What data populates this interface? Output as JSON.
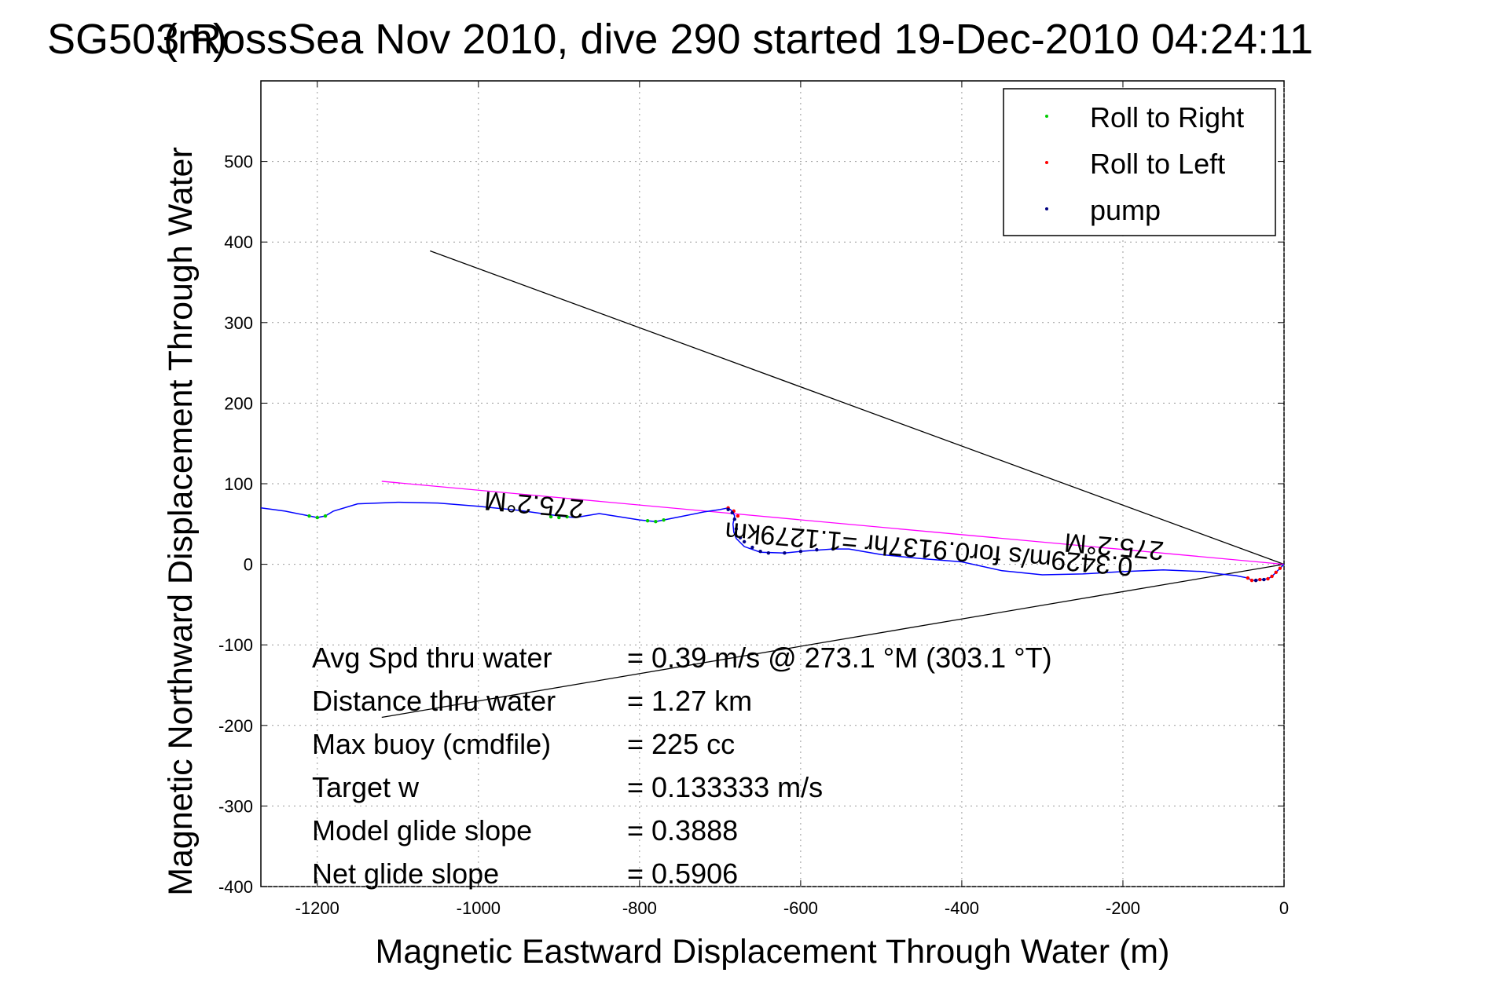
{
  "chart_data": {
    "type": "line",
    "title": "SG503 RossSea Nov 2010, dive 290 started 19-Dec-2010 04:24:11",
    "title_overprint": "(m)",
    "xlabel": "Magnetic Eastward Displacement Through Water (m)",
    "ylabel": "Magnetic Northward Displacement Through Water",
    "xlim": [
      -1270,
      0
    ],
    "ylim": [
      -400,
      600
    ],
    "xticks": [
      -1200,
      -1000,
      -800,
      -600,
      -400,
      -200,
      0
    ],
    "yticks": [
      -400,
      -300,
      -200,
      -100,
      0,
      100,
      200,
      300,
      400,
      500
    ],
    "grid": true,
    "legend_position": "top-right",
    "legend": [
      {
        "label": "Roll to Right",
        "color": "#00cc00"
      },
      {
        "label": "Roll to Left",
        "color": "#ff0000"
      },
      {
        "label": "pump",
        "color": "#000080"
      }
    ],
    "series": [
      {
        "color": "#0000ff",
        "x": [
          -1270,
          -1240,
          -1210,
          -1200,
          -1190,
          -1180,
          -1150,
          -1100,
          -1050,
          -1000,
          -950,
          -900,
          -880,
          -850,
          -800,
          -780,
          -760,
          -720,
          -700,
          -690,
          -685,
          -682,
          -684,
          -683,
          -680,
          -670,
          -650,
          -620,
          -600,
          -560,
          -540,
          -500,
          -450,
          -400,
          -350,
          -300,
          -250,
          -200,
          -150,
          -100,
          -80,
          -60,
          -45,
          -40,
          -35,
          -30,
          -20,
          -15,
          -10,
          -5,
          0
        ],
        "y": [
          70,
          66,
          60,
          58,
          60,
          66,
          75,
          77,
          76,
          72,
          67,
          60,
          58,
          63,
          55,
          53,
          57,
          65,
          68,
          70,
          66,
          60,
          50,
          40,
          32,
          22,
          15,
          14,
          16,
          19,
          19,
          12,
          7,
          3,
          -8,
          -13,
          -12,
          -9,
          -7,
          -9,
          -12,
          -14,
          -17,
          -20,
          -20,
          -19,
          -18,
          -15,
          -10,
          -5,
          0
        ]
      },
      {
        "color": "#00cc00",
        "x": [
          -1210,
          -1200,
          -1190,
          -910,
          -900,
          -890,
          -790,
          -780,
          -770
        ],
        "y": [
          60,
          58,
          60,
          59,
          58,
          59,
          54,
          53,
          55
        ]
      },
      {
        "color": "#ff0000",
        "x": [
          -690,
          -683,
          -678,
          -45,
          -40,
          -35,
          -30,
          -20,
          -15,
          -10,
          -5
        ],
        "y": [
          70,
          66,
          60,
          -17,
          -20,
          -20,
          -19,
          -18,
          -15,
          -10,
          -5
        ]
      },
      {
        "color": "#000080",
        "x": [
          -685,
          -682,
          -680,
          -675,
          -670,
          -660,
          -650,
          -640,
          -620,
          -600,
          -580,
          -560,
          -690,
          -35,
          -25
        ],
        "y": [
          64,
          56,
          44,
          33,
          28,
          21,
          16,
          14,
          14,
          16,
          18,
          19,
          68,
          -20,
          -19
        ]
      }
    ],
    "lines": [
      {
        "color": "#000000",
        "x": [
          0,
          -1060
        ],
        "y": [
          0,
          389
        ]
      },
      {
        "color": "#000000",
        "x": [
          0,
          -1120
        ],
        "y": [
          0,
          -190
        ]
      },
      {
        "color": "#ff00ff",
        "x": [
          0,
          -1120
        ],
        "y": [
          0,
          103
        ]
      }
    ],
    "annotations": [
      {
        "text": "275.2°M",
        "x": -930,
        "y": 85,
        "rotate": 185
      },
      {
        "text": "275.2°M",
        "x": -210,
        "y": 33,
        "rotate": 185
      },
      {
        "text": "0.3429m/s for0.9137hr =1.1279km",
        "x": -440,
        "y": 30,
        "rotate": 185
      }
    ],
    "stats": [
      {
        "label": "Avg Spd thru water",
        "value": "=  0.39 m/s @ 273.1 °M (303.1 °T)"
      },
      {
        "label": "Distance thru water",
        "value": "=  1.27 km"
      },
      {
        "label": "Max buoy (cmdfile)",
        "value": "= 225 cc"
      },
      {
        "label": "Target w",
        "value": "= 0.133333 m/s"
      },
      {
        "label": "Model glide slope",
        "value": "= 0.3888"
      },
      {
        "label": "Net glide slope",
        "value": "= 0.5906"
      }
    ]
  }
}
